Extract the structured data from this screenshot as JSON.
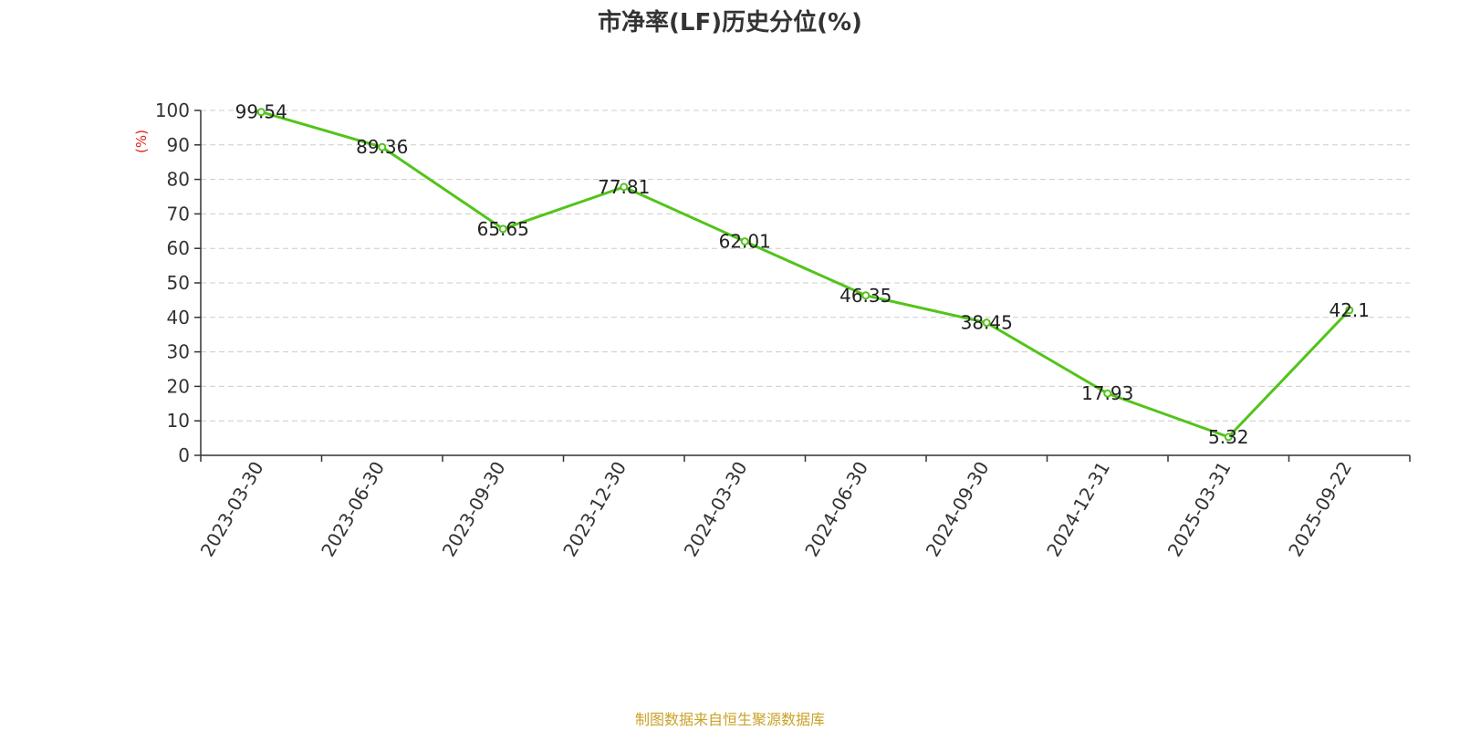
{
  "chart_data": {
    "type": "line",
    "title": "市净率(LF)历史分位(%)",
    "xlabel": "",
    "ylabel": "(%)",
    "categories": [
      "2023-03-30",
      "2023-06-30",
      "2023-09-30",
      "2023-12-30",
      "2024-03-30",
      "2024-06-30",
      "2024-09-30",
      "2024-12-31",
      "2025-03-31",
      "2025-09-22"
    ],
    "series": [
      {
        "values": [
          99.54,
          89.36,
          65.65,
          77.81,
          62.01,
          46.35,
          38.45,
          17.93,
          5.32,
          42.1
        ],
        "labels": [
          "99.54",
          "89.36",
          "65.65",
          "77.81",
          "62.01",
          "46.35",
          "38.45",
          "17.93",
          "5.32",
          "42.1"
        ],
        "color": "#52c41a"
      }
    ],
    "ylim": [
      0,
      100
    ],
    "yticks": [
      0,
      10,
      20,
      30,
      40,
      50,
      60,
      70,
      80,
      90,
      100
    ],
    "grid": true,
    "legend": "none"
  },
  "footer": {
    "source": "制图数据来自恒生聚源数据库"
  },
  "colors": {
    "line": "#52c41a",
    "grid": "#cccccc",
    "axis": "#333333",
    "ylabel": "#e0201c",
    "source": "#c9a227"
  }
}
